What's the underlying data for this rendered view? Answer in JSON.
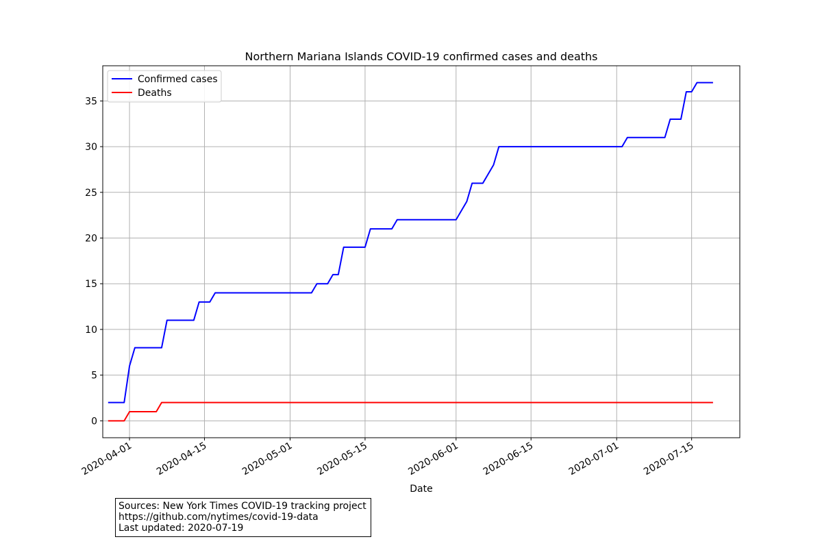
{
  "chart_data": {
    "type": "line",
    "title": "Northern Mariana Islands COVID-19 confirmed cases and deaths",
    "xlabel": "Date",
    "ylabel": "",
    "x_range": [
      "2020-03-27",
      "2020-07-24"
    ],
    "ylim": [
      -1.85,
      38.85
    ],
    "x_ticks": [
      "2020-04-01",
      "2020-04-15",
      "2020-05-01",
      "2020-05-15",
      "2020-06-01",
      "2020-06-15",
      "2020-07-01",
      "2020-07-15"
    ],
    "y_ticks": [
      0,
      5,
      10,
      15,
      20,
      25,
      30,
      35
    ],
    "grid": true,
    "legend_position": "top-left",
    "series": [
      {
        "name": "Confirmed cases",
        "color": "#0000ff",
        "points": [
          [
            "2020-03-28",
            2
          ],
          [
            "2020-03-31",
            2
          ],
          [
            "2020-04-01",
            6
          ],
          [
            "2020-04-02",
            8
          ],
          [
            "2020-04-07",
            8
          ],
          [
            "2020-04-08",
            11
          ],
          [
            "2020-04-13",
            11
          ],
          [
            "2020-04-14",
            13
          ],
          [
            "2020-04-16",
            13
          ],
          [
            "2020-04-17",
            14
          ],
          [
            "2020-05-05",
            14
          ],
          [
            "2020-05-06",
            15
          ],
          [
            "2020-05-08",
            15
          ],
          [
            "2020-05-09",
            16
          ],
          [
            "2020-05-10",
            16
          ],
          [
            "2020-05-11",
            19
          ],
          [
            "2020-05-15",
            19
          ],
          [
            "2020-05-16",
            21
          ],
          [
            "2020-05-20",
            21
          ],
          [
            "2020-05-21",
            22
          ],
          [
            "2020-06-01",
            22
          ],
          [
            "2020-06-03",
            24
          ],
          [
            "2020-06-04",
            26
          ],
          [
            "2020-06-06",
            26
          ],
          [
            "2020-06-08",
            28
          ],
          [
            "2020-06-09",
            30
          ],
          [
            "2020-07-02",
            30
          ],
          [
            "2020-07-03",
            31
          ],
          [
            "2020-07-10",
            31
          ],
          [
            "2020-07-11",
            33
          ],
          [
            "2020-07-13",
            33
          ],
          [
            "2020-07-14",
            36
          ],
          [
            "2020-07-15",
            36
          ],
          [
            "2020-07-16",
            37
          ],
          [
            "2020-07-19",
            37
          ]
        ]
      },
      {
        "name": "Deaths",
        "color": "#ff0000",
        "points": [
          [
            "2020-03-28",
            0
          ],
          [
            "2020-03-31",
            0
          ],
          [
            "2020-04-01",
            1
          ],
          [
            "2020-04-06",
            1
          ],
          [
            "2020-04-07",
            2
          ],
          [
            "2020-07-19",
            2
          ]
        ]
      }
    ]
  },
  "source_note": {
    "line1": "Sources: New York Times COVID-19 tracking project",
    "line2": "https://github.com/nytimes/covid-19-data",
    "line3": "Last updated: 2020-07-19"
  }
}
